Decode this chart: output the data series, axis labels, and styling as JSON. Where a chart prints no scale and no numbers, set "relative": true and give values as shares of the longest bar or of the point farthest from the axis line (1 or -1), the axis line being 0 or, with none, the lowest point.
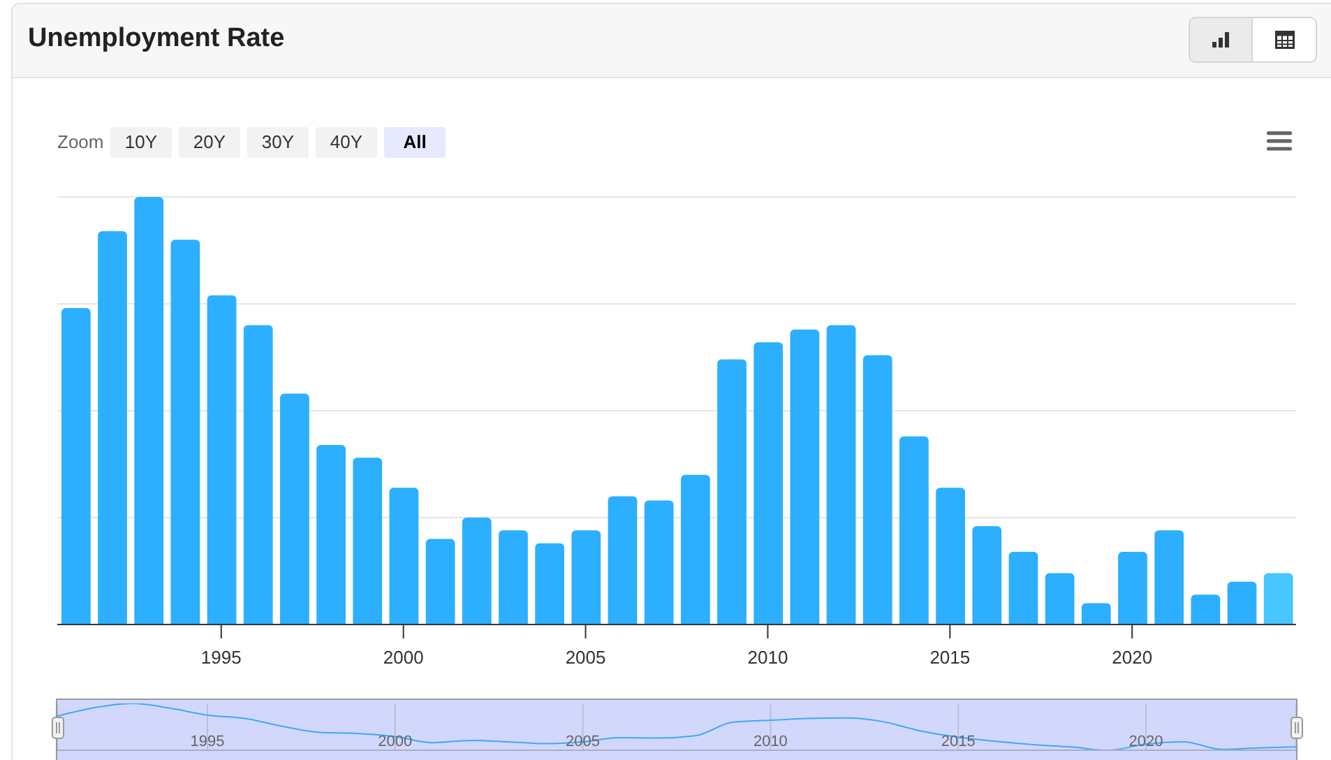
{
  "chart_data": [
    {
      "type": "bar",
      "title": "Unemployment Rate",
      "x": [
        1991,
        1992,
        1993,
        1994,
        1995,
        1996,
        1997,
        1998,
        1999,
        2000,
        2001,
        2002,
        2003,
        2004,
        2005,
        2006,
        2007,
        2008,
        2009,
        2010,
        2011,
        2012,
        2013,
        2014,
        2015,
        2016,
        2017,
        2018,
        2019,
        2020,
        2021,
        2022,
        2023,
        2024
      ],
      "values": [
        0.74,
        0.92,
        1,
        0.9,
        0.77,
        0.7,
        0.54,
        0.42,
        0.39,
        0.32,
        0.2,
        0.25,
        0.22,
        0.19,
        0.22,
        0.3,
        0.29,
        0.35,
        0.62,
        0.66,
        0.69,
        0.7,
        0.63,
        0.44,
        0.32,
        0.23,
        0.17,
        0.12,
        0.05,
        0.17,
        0.22,
        0.07,
        0.1,
        0.12
      ],
      "colors": [
        "#2caffe",
        "#2caffe",
        "#2caffe",
        "#2caffe",
        "#2caffe",
        "#2caffe",
        "#2caffe",
        "#2caffe",
        "#2caffe",
        "#2caffe",
        "#2caffe",
        "#2caffe",
        "#2caffe",
        "#2caffe",
        "#2caffe",
        "#2caffe",
        "#2caffe",
        "#2caffe",
        "#2caffe",
        "#2caffe",
        "#2caffe",
        "#2caffe",
        "#2caffe",
        "#2caffe",
        "#2caffe",
        "#2caffe",
        "#2caffe",
        "#2caffe",
        "#2caffe",
        "#2caffe",
        "#2caffe",
        "#2caffe",
        "#2caffe",
        "#47c6ff"
      ],
      "relative": true,
      "xlim": [
        1990.5,
        2024.5
      ],
      "xticks": [
        1995,
        2000,
        2005,
        2010,
        2015,
        2020
      ],
      "grid": "y",
      "annotations": [
        "Zoom",
        "10Y",
        "20Y",
        "30Y",
        "40Y",
        "All"
      ]
    },
    {
      "type": "line",
      "x": [
        1991,
        1992,
        1993,
        1994,
        1995,
        1996,
        1997,
        1998,
        1999,
        2000,
        2001,
        2002,
        2003,
        2004,
        2005,
        2006,
        2007,
        2008,
        2009,
        2010,
        2011,
        2012,
        2013,
        2014,
        2015,
        2016,
        2017,
        2018,
        2019,
        2020,
        2021,
        2022,
        2023,
        2024
      ],
      "values": [
        0.73,
        0.91,
        1,
        0.9,
        0.75,
        0.68,
        0.51,
        0.38,
        0.36,
        0.29,
        0.16,
        0.21,
        0.18,
        0.14,
        0.18,
        0.27,
        0.26,
        0.31,
        0.6,
        0.64,
        0.68,
        0.69,
        0.61,
        0.41,
        0.28,
        0.19,
        0.12,
        0.07,
        0,
        0.13,
        0.18,
        0.02,
        0.05,
        0.07
      ],
      "color": "#3ea9f5",
      "relative": true,
      "xlim": [
        1991,
        2024
      ],
      "xticks": [
        1995,
        2000,
        2005,
        2010,
        2015,
        2020
      ],
      "grid": "x"
    }
  ]
}
